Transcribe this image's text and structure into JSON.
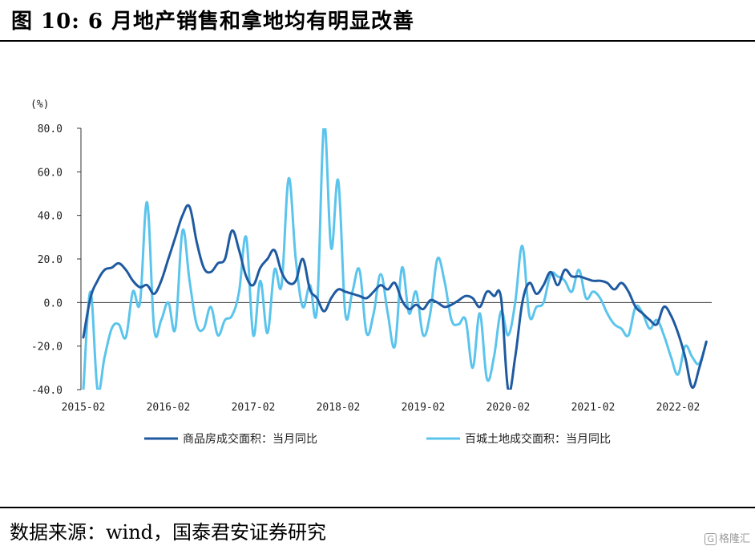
{
  "header": {
    "title": "图 10: 6 月地产销售和拿地均有明显改善"
  },
  "footer": {
    "source": "数据来源：wind，国泰君安证券研究",
    "watermark": "格隆汇"
  },
  "chart_data": {
    "type": "line",
    "title": "",
    "xlabel": "",
    "ylabel": "(%)",
    "ylim": [
      -40,
      80
    ],
    "yticks": [
      "80.0",
      "60.0",
      "40.0",
      "20.0",
      "0.0",
      "-20.0",
      "-40.0"
    ],
    "xticks": [
      "2015-02",
      "2016-02",
      "2017-02",
      "2018-02",
      "2019-02",
      "2020-02",
      "2021-02",
      "2022-02"
    ],
    "legend_position": "bottom",
    "grid": false,
    "series": [
      {
        "name": "商品房成交面积：当月同比",
        "color": "#1f5aa0",
        "x": [
          "2015-02",
          "2015-03",
          "2015-04",
          "2015-05",
          "2015-06",
          "2015-07",
          "2015-08",
          "2015-09",
          "2015-10",
          "2015-11",
          "2015-12",
          "2016-01",
          "2016-02",
          "2016-03",
          "2016-04",
          "2016-05",
          "2016-06",
          "2016-07",
          "2016-08",
          "2016-09",
          "2016-10",
          "2016-11",
          "2016-12",
          "2017-01",
          "2017-02",
          "2017-03",
          "2017-04",
          "2017-05",
          "2017-06",
          "2017-07",
          "2017-08",
          "2017-09",
          "2017-10",
          "2017-11",
          "2017-12",
          "2018-01",
          "2018-02",
          "2018-03",
          "2018-04",
          "2018-05",
          "2018-06",
          "2018-07",
          "2018-08",
          "2018-09",
          "2018-10",
          "2018-11",
          "2018-12",
          "2019-01",
          "2019-02",
          "2019-03",
          "2019-04",
          "2019-05",
          "2019-06",
          "2019-07",
          "2019-08",
          "2019-09",
          "2019-10",
          "2019-11",
          "2019-12",
          "2020-01",
          "2020-02",
          "2020-03",
          "2020-04",
          "2020-05",
          "2020-06",
          "2020-07",
          "2020-08",
          "2020-09",
          "2020-10",
          "2020-11",
          "2020-12",
          "2021-01",
          "2021-02",
          "2021-03",
          "2021-04",
          "2021-05",
          "2021-06",
          "2021-07",
          "2021-08",
          "2021-09",
          "2021-10",
          "2021-11",
          "2021-12",
          "2022-01",
          "2022-02",
          "2022-03",
          "2022-04",
          "2022-05",
          "2022-06"
        ],
        "values": [
          -16,
          2,
          10,
          15,
          16,
          18,
          15,
          10,
          7,
          8,
          4,
          10,
          20,
          30,
          40,
          44,
          28,
          16,
          14,
          18,
          20,
          33,
          24,
          12,
          8,
          16,
          20,
          24,
          14,
          9,
          10,
          20,
          6,
          2,
          -4,
          2,
          6,
          5,
          4,
          3,
          2,
          5,
          8,
          6,
          9,
          1,
          -3,
          -1,
          -3,
          1,
          0,
          -2,
          -1,
          1,
          3,
          2,
          -2,
          5,
          3,
          2,
          -40,
          -25,
          0,
          9,
          4,
          8,
          14,
          8,
          15,
          12,
          12,
          11,
          10,
          10,
          9,
          6,
          9,
          5,
          -2,
          -5,
          -8,
          -10,
          -2,
          -6,
          -14,
          -25,
          -39,
          -30,
          -18
        ]
      },
      {
        "name": "百城土地成交面积：当月同比",
        "color": "#5bc4ec",
        "x": [
          "2015-02",
          "2015-03",
          "2015-04",
          "2015-05",
          "2015-06",
          "2015-07",
          "2015-08",
          "2015-09",
          "2015-10",
          "2015-11",
          "2015-12",
          "2016-01",
          "2016-02",
          "2016-03",
          "2016-04",
          "2016-05",
          "2016-06",
          "2016-07",
          "2016-08",
          "2016-09",
          "2016-10",
          "2016-11",
          "2016-12",
          "2017-01",
          "2017-02",
          "2017-03",
          "2017-04",
          "2017-05",
          "2017-06",
          "2017-07",
          "2017-08",
          "2017-09",
          "2017-10",
          "2017-11",
          "2017-12",
          "2018-01",
          "2018-02",
          "2018-03",
          "2018-04",
          "2018-05",
          "2018-06",
          "2018-07",
          "2018-08",
          "2018-09",
          "2018-10",
          "2018-11",
          "2018-12",
          "2019-01",
          "2019-02",
          "2019-03",
          "2019-04",
          "2019-05",
          "2019-06",
          "2019-07",
          "2019-08",
          "2019-09",
          "2019-10",
          "2019-11",
          "2019-12",
          "2020-01",
          "2020-02",
          "2020-03",
          "2020-04",
          "2020-05",
          "2020-06",
          "2020-07",
          "2020-08",
          "2020-09",
          "2020-10",
          "2020-11",
          "2020-12",
          "2021-01",
          "2021-02",
          "2021-03",
          "2021-04",
          "2021-05",
          "2021-06",
          "2021-07",
          "2021-08",
          "2021-09",
          "2021-10",
          "2021-11",
          "2021-12",
          "2022-01",
          "2022-02",
          "2022-03",
          "2022-04",
          "2022-05",
          "2022-06"
        ],
        "values": [
          -40,
          5,
          -40,
          -25,
          -12,
          -10,
          -16,
          5,
          0,
          46,
          -12,
          -8,
          0,
          -12,
          33,
          10,
          -10,
          -12,
          -2,
          -15,
          -8,
          -6,
          5,
          30,
          -15,
          10,
          -14,
          15,
          8,
          57,
          20,
          -2,
          8,
          -3,
          82,
          25,
          56,
          -5,
          5,
          15,
          -14,
          -5,
          13,
          -5,
          -20,
          16,
          -5,
          5,
          -15,
          -5,
          20,
          10,
          -8,
          -10,
          -8,
          -30,
          -5,
          -35,
          -25,
          -4,
          -15,
          0,
          26,
          -6,
          -2,
          0,
          13,
          12,
          10,
          5,
          15,
          2,
          5,
          2,
          -5,
          -10,
          -12,
          -15,
          -2,
          -5,
          -12,
          -8,
          -15,
          -25,
          -33,
          -20,
          -25,
          -28,
          -18
        ]
      }
    ]
  }
}
